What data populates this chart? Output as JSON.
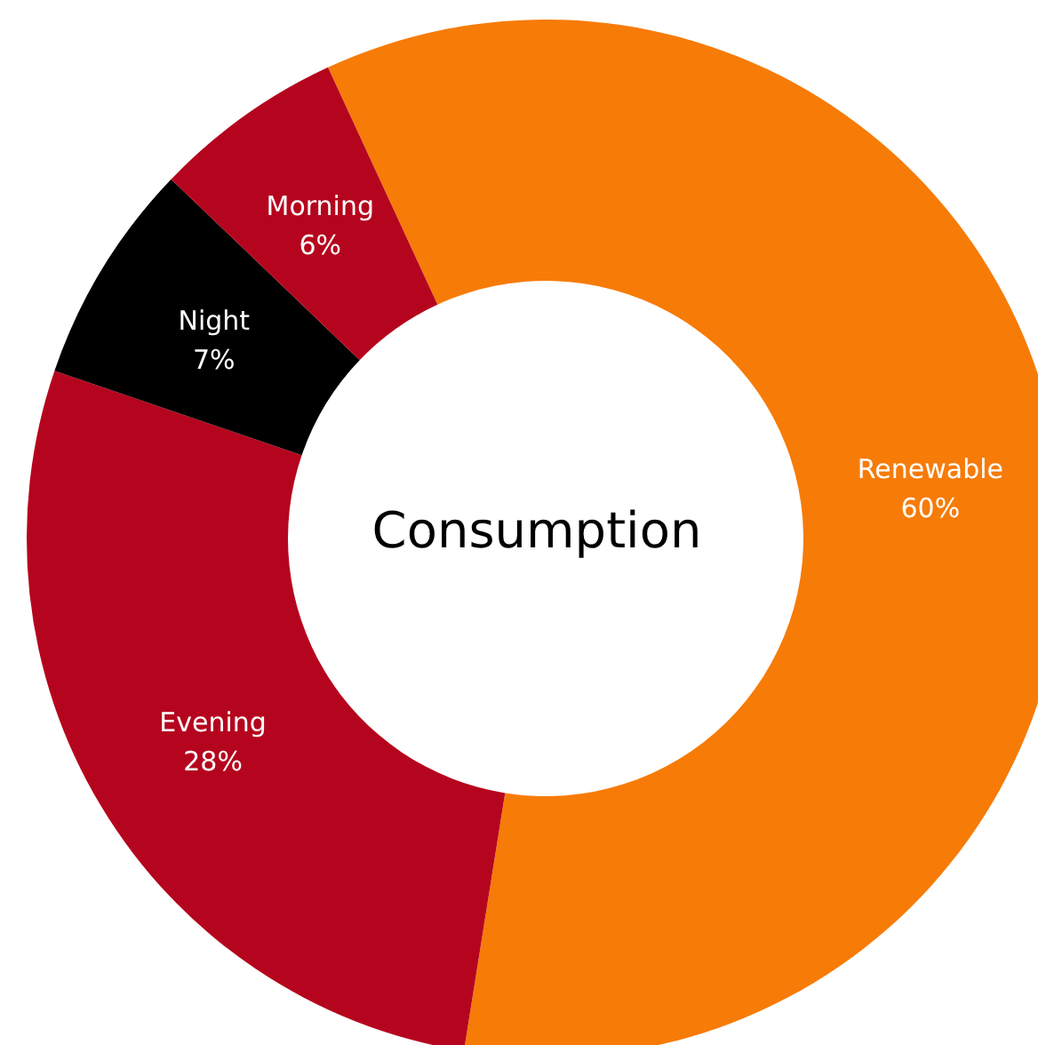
{
  "chart_data": {
    "type": "donut",
    "title": "Consumption",
    "categories": [
      "Renewable",
      "Evening",
      "Night",
      "Morning"
    ],
    "values": [
      60,
      28,
      7,
      6
    ],
    "value_labels": [
      "60%",
      "28%",
      "7%",
      "6%"
    ],
    "colors": [
      "#f77b07",
      "#b5051e",
      "#000000",
      "#b5051e"
    ]
  }
}
